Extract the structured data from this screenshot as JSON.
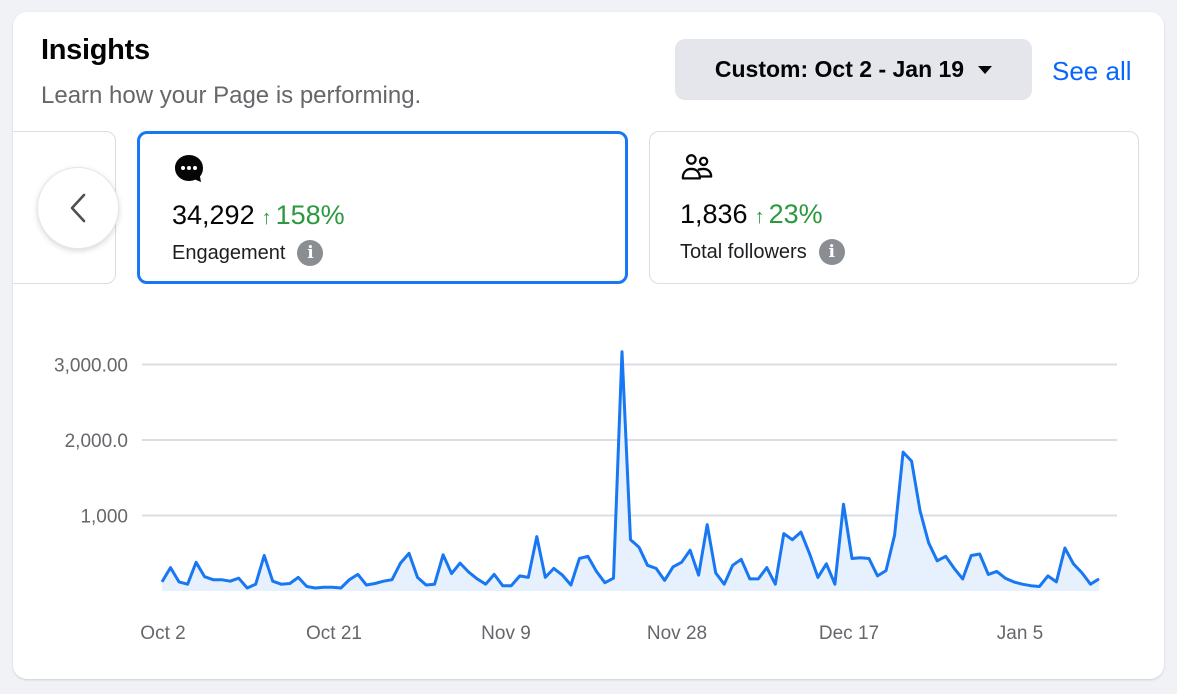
{
  "header": {
    "title": "Insights",
    "subtitle": "Learn how your Page is performing.",
    "date_range_label": "Custom: Oct 2 - Jan 19",
    "see_all_label": "See all"
  },
  "metrics": [
    {
      "icon": "chat-bubble-icon",
      "value": "34,292",
      "delta_arrow": "↑",
      "delta": "158%",
      "label": "Engagement",
      "selected": true
    },
    {
      "icon": "people-icon",
      "value": "1,836",
      "delta_arrow": "↑",
      "delta": "23%",
      "label": "Total followers",
      "selected": false
    }
  ],
  "colors": {
    "accent": "#1877f2",
    "line": "#1877f2",
    "fill": "#e7f0fd",
    "positive": "#2b9a3f",
    "link": "#0866ff"
  },
  "chart_data": {
    "type": "area",
    "title": "Engagement",
    "xlabel": "",
    "ylabel": "",
    "ylim": [
      0,
      3000
    ],
    "yticks": [
      "1,000",
      "2,000.0",
      "3,000.00"
    ],
    "ytick_values": [
      1000,
      2000,
      3000
    ],
    "xtick_labels": [
      "Oct 2",
      "Oct 21",
      "Nov 9",
      "Nov 28",
      "Dec 17",
      "Jan 5"
    ],
    "grid": true,
    "legend": "none",
    "x_start": "Oct 2",
    "x_end": "Jan 19",
    "series": [
      {
        "name": "Engagement",
        "values": [
          120,
          310,
          120,
          90,
          380,
          190,
          150,
          150,
          130,
          170,
          40,
          90,
          470,
          130,
          90,
          100,
          180,
          60,
          40,
          50,
          50,
          40,
          150,
          220,
          80,
          100,
          130,
          150,
          370,
          500,
          180,
          80,
          90,
          480,
          230,
          370,
          250,
          160,
          90,
          220,
          70,
          70,
          200,
          180,
          720,
          180,
          300,
          210,
          80,
          430,
          460,
          260,
          110,
          170,
          3170,
          680,
          580,
          340,
          300,
          140,
          320,
          380,
          540,
          210,
          880,
          240,
          90,
          340,
          420,
          160,
          160,
          310,
          90,
          760,
          680,
          780,
          500,
          180,
          360,
          90,
          1150,
          430,
          440,
          430,
          200,
          270,
          740,
          1840,
          1720,
          1060,
          640,
          400,
          460,
          300,
          160,
          470,
          490,
          220,
          260,
          170,
          120,
          90,
          70,
          60,
          200,
          120,
          570,
          360,
          240,
          90,
          160
        ]
      }
    ]
  }
}
